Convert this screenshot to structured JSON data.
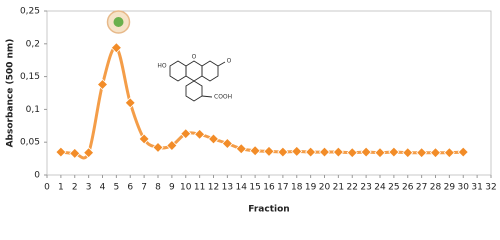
{
  "chart_data": {
    "type": "line",
    "x_label": "Fraction",
    "y_label": "Absorbance (500 nm)",
    "x": [
      1,
      2,
      3,
      4,
      5,
      6,
      7,
      8,
      9,
      10,
      11,
      12,
      13,
      14,
      15,
      16,
      17,
      18,
      19,
      20,
      21,
      22,
      23,
      24,
      25,
      26,
      27,
      28,
      29,
      30
    ],
    "series": [
      {
        "color": "#f28c28",
        "values": [
          0.035,
          0.033,
          0.034,
          0.138,
          0.194,
          0.11,
          0.055,
          0.042,
          0.045,
          0.063,
          0.062,
          0.055,
          0.048,
          0.04,
          0.037,
          0.036,
          0.035,
          0.036,
          0.035,
          0.035,
          0.035,
          0.034,
          0.035,
          0.034,
          0.035,
          0.034,
          0.034,
          0.034,
          0.034,
          0.035
        ]
      }
    ],
    "xlim": [
      0,
      32
    ],
    "ylim": [
      0,
      0.25
    ],
    "xticks": [
      0,
      1,
      2,
      3,
      4,
      5,
      6,
      7,
      8,
      9,
      10,
      11,
      12,
      13,
      14,
      15,
      16,
      17,
      18,
      19,
      20,
      21,
      22,
      23,
      24,
      25,
      26,
      27,
      28,
      29,
      30,
      31,
      32
    ],
    "yticks": [
      0,
      {
        "value": 0.05,
        "label": "0,05"
      },
      {
        "value": 0.1,
        "label": "0,1"
      },
      {
        "value": 0.15,
        "label": "0,15"
      },
      {
        "value": 0.2,
        "label": "0,2"
      },
      {
        "value": 0.25,
        "label": "0,25"
      }
    ],
    "annotations": [
      "HO",
      "O",
      "O",
      "COOH"
    ]
  }
}
